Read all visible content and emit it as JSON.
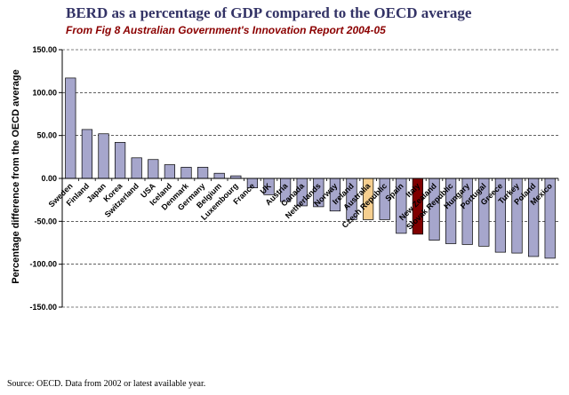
{
  "header": {
    "title": "BERD as a percentage of GDP compared to the OECD average",
    "subtitle": "From Fig 8 Australian Government's Innovation Report 2004-05"
  },
  "footer": {
    "source": "Source: OECD.  Data from 2002 or latest available year."
  },
  "colors": {
    "default_bar": "#a6a6cc",
    "australia_bar": "#f6cf8f",
    "italy_bar": "#800000",
    "plot_background": "#ffffff",
    "gridline": "#000000"
  },
  "chart_data": {
    "type": "bar",
    "title": "BERD as a percentage of GDP compared to the OECD average",
    "subtitle": "From Fig 8 Australian Government's Innovation Report 2004-05",
    "xlabel": "",
    "ylabel": "Percentage difference from the OECD average",
    "ylim": [
      -150,
      150
    ],
    "yticks": [
      150,
      100,
      50,
      0,
      -50,
      -100,
      -150
    ],
    "ytick_labels": [
      "150.00",
      "100.00",
      "50.00",
      "0.00",
      "-50.00",
      "-100.00",
      "-150.00"
    ],
    "grid": "horizontal dashed",
    "categories": [
      "Sweden",
      "Finland",
      "Japan",
      "Korea",
      "Switzerland",
      "USA",
      "Iceland",
      "Denmark",
      "Germany",
      "Belgium",
      "Luxembourg",
      "France",
      "UK",
      "Austria",
      "Canada",
      "Netherlands",
      "Norway",
      "Ireland",
      "Australia",
      "Czech Republic",
      "Spain",
      "Italy",
      "New Zealand",
      "Slovak Republic",
      "Hungary",
      "Portugal",
      "Greece",
      "Turkey",
      "Poland",
      "Mexico"
    ],
    "values": [
      117,
      57,
      52,
      42,
      24,
      22,
      16,
      13,
      13,
      6,
      3,
      -11,
      -19,
      -27,
      -32,
      -33,
      -38,
      -48,
      -48,
      -48,
      -64,
      -65,
      -72,
      -76,
      -77,
      -79,
      -86,
      -87,
      -91,
      -93
    ],
    "highlight": {
      "Australia": "#f6cf8f",
      "Italy": "#800000"
    }
  }
}
